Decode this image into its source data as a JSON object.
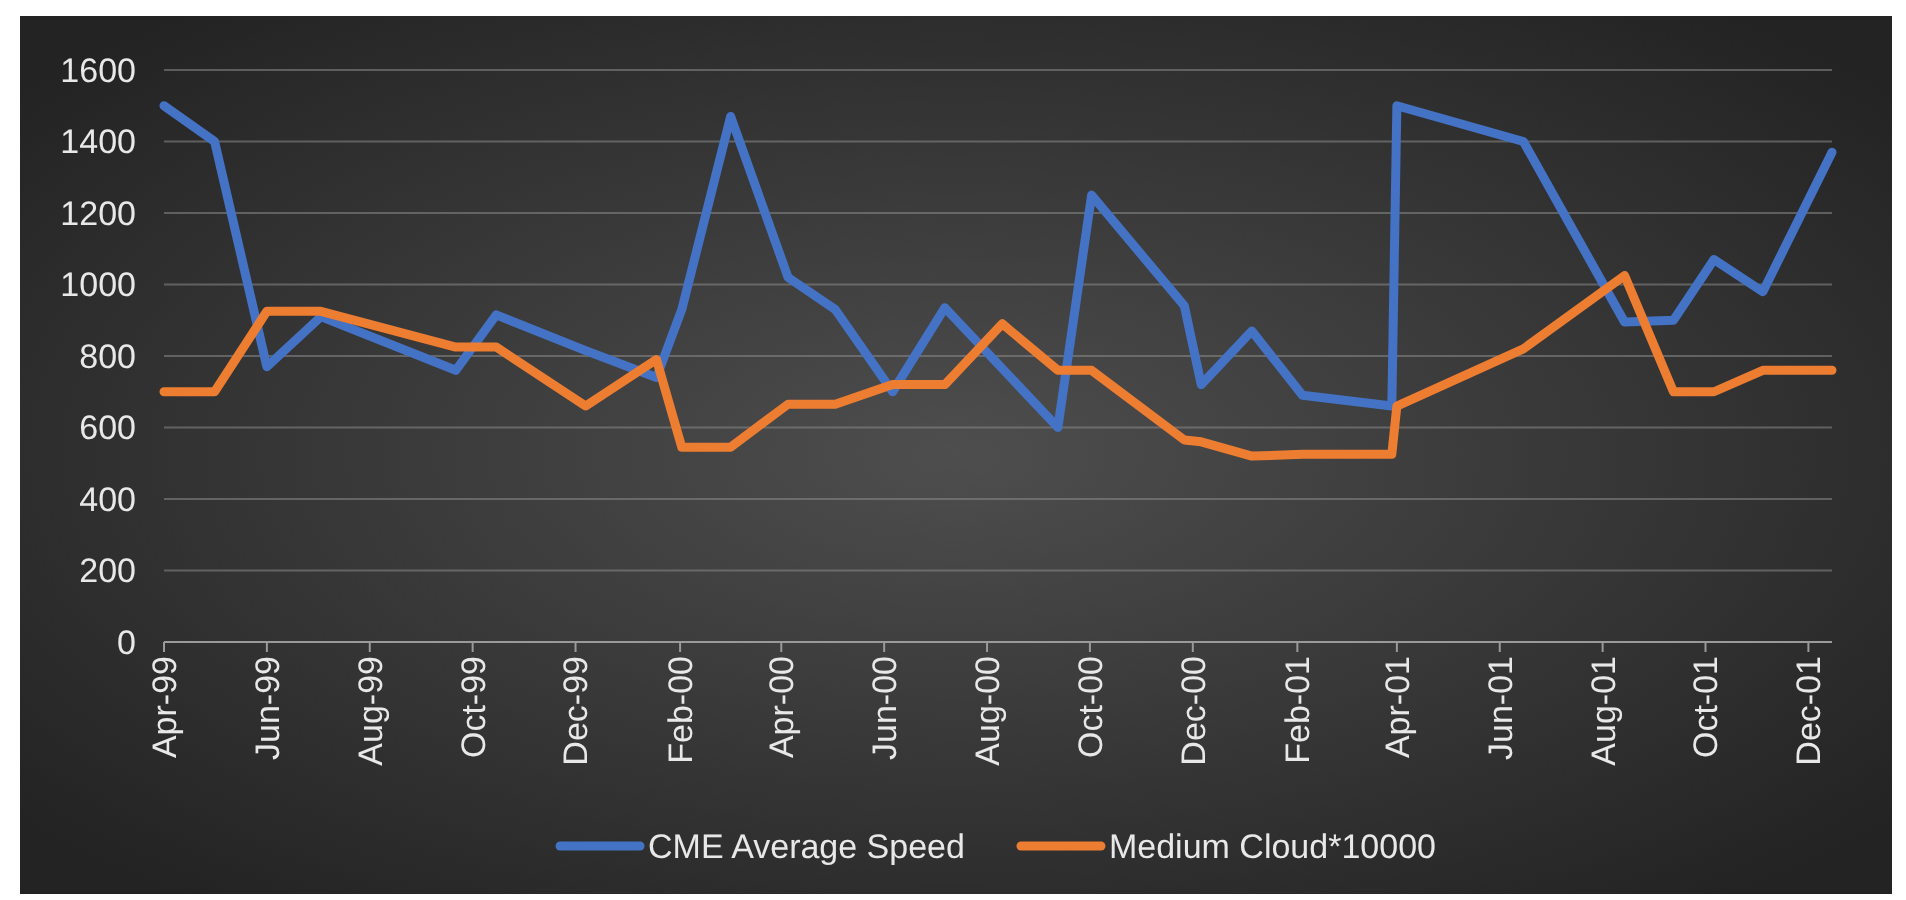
{
  "chart_data": {
    "type": "line",
    "x": [
      "1999-04-01",
      "1999-05-01",
      "1999-06-01",
      "1999-07-03",
      "1999-09-21",
      "1999-10-15",
      "1999-12-07",
      "2000-01-18",
      "2000-02-02",
      "2000-03-02",
      "2000-04-05",
      "2000-05-03",
      "2000-06-06",
      "2000-07-07",
      "2000-08-10",
      "2000-09-12",
      "2000-10-02",
      "2000-11-26",
      "2000-12-06",
      "2001-01-05",
      "2001-02-04",
      "2001-03-29",
      "2001-04-01",
      "2001-06-15",
      "2001-08-14",
      "2001-09-12",
      "2001-10-06",
      "2001-11-04",
      "2001-12-15"
    ],
    "series": [
      {
        "name": "CME Average Speed",
        "color": "#4472c4",
        "values": [
          1500,
          1400,
          770,
          910,
          760,
          915,
          815,
          740,
          930,
          1470,
          1020,
          930,
          700,
          935,
          765,
          600,
          1250,
          940,
          720,
          870,
          690,
          660,
          1500,
          1400,
          895,
          900,
          1070,
          980,
          1370
        ]
      },
      {
        "name": "Medium Cloud*10000",
        "color": "#ed7d31",
        "values": [
          700,
          700,
          925,
          925,
          825,
          825,
          660,
          790,
          545,
          545,
          665,
          665,
          720,
          720,
          890,
          760,
          760,
          565,
          560,
          520,
          525,
          525,
          660,
          820,
          1025,
          700,
          700,
          760,
          760
        ]
      }
    ],
    "xlim": [
      "1999-04-01",
      "2001-12-15"
    ],
    "xticks": [
      {
        "value": "1999-04-01",
        "label": "Apr-99"
      },
      {
        "value": "1999-06-01",
        "label": "Jun-99"
      },
      {
        "value": "1999-08-01",
        "label": "Aug-99"
      },
      {
        "value": "1999-10-01",
        "label": "Oct-99"
      },
      {
        "value": "1999-12-01",
        "label": "Dec-99"
      },
      {
        "value": "2000-02-01",
        "label": "Feb-00"
      },
      {
        "value": "2000-04-01",
        "label": "Apr-00"
      },
      {
        "value": "2000-06-01",
        "label": "Jun-00"
      },
      {
        "value": "2000-08-01",
        "label": "Aug-00"
      },
      {
        "value": "2000-10-01",
        "label": "Oct-00"
      },
      {
        "value": "2000-12-01",
        "label": "Dec-00"
      },
      {
        "value": "2001-02-01",
        "label": "Feb-01"
      },
      {
        "value": "2001-04-01",
        "label": "Apr-01"
      },
      {
        "value": "2001-06-01",
        "label": "Jun-01"
      },
      {
        "value": "2001-08-01",
        "label": "Aug-01"
      },
      {
        "value": "2001-10-01",
        "label": "Oct-01"
      },
      {
        "value": "2001-12-01",
        "label": "Dec-01"
      }
    ],
    "ylim": [
      0,
      1600
    ],
    "yticks": [
      0,
      200,
      400,
      600,
      800,
      1000,
      1200,
      1400,
      1600
    ],
    "grid": "y",
    "legend": "bottom"
  }
}
